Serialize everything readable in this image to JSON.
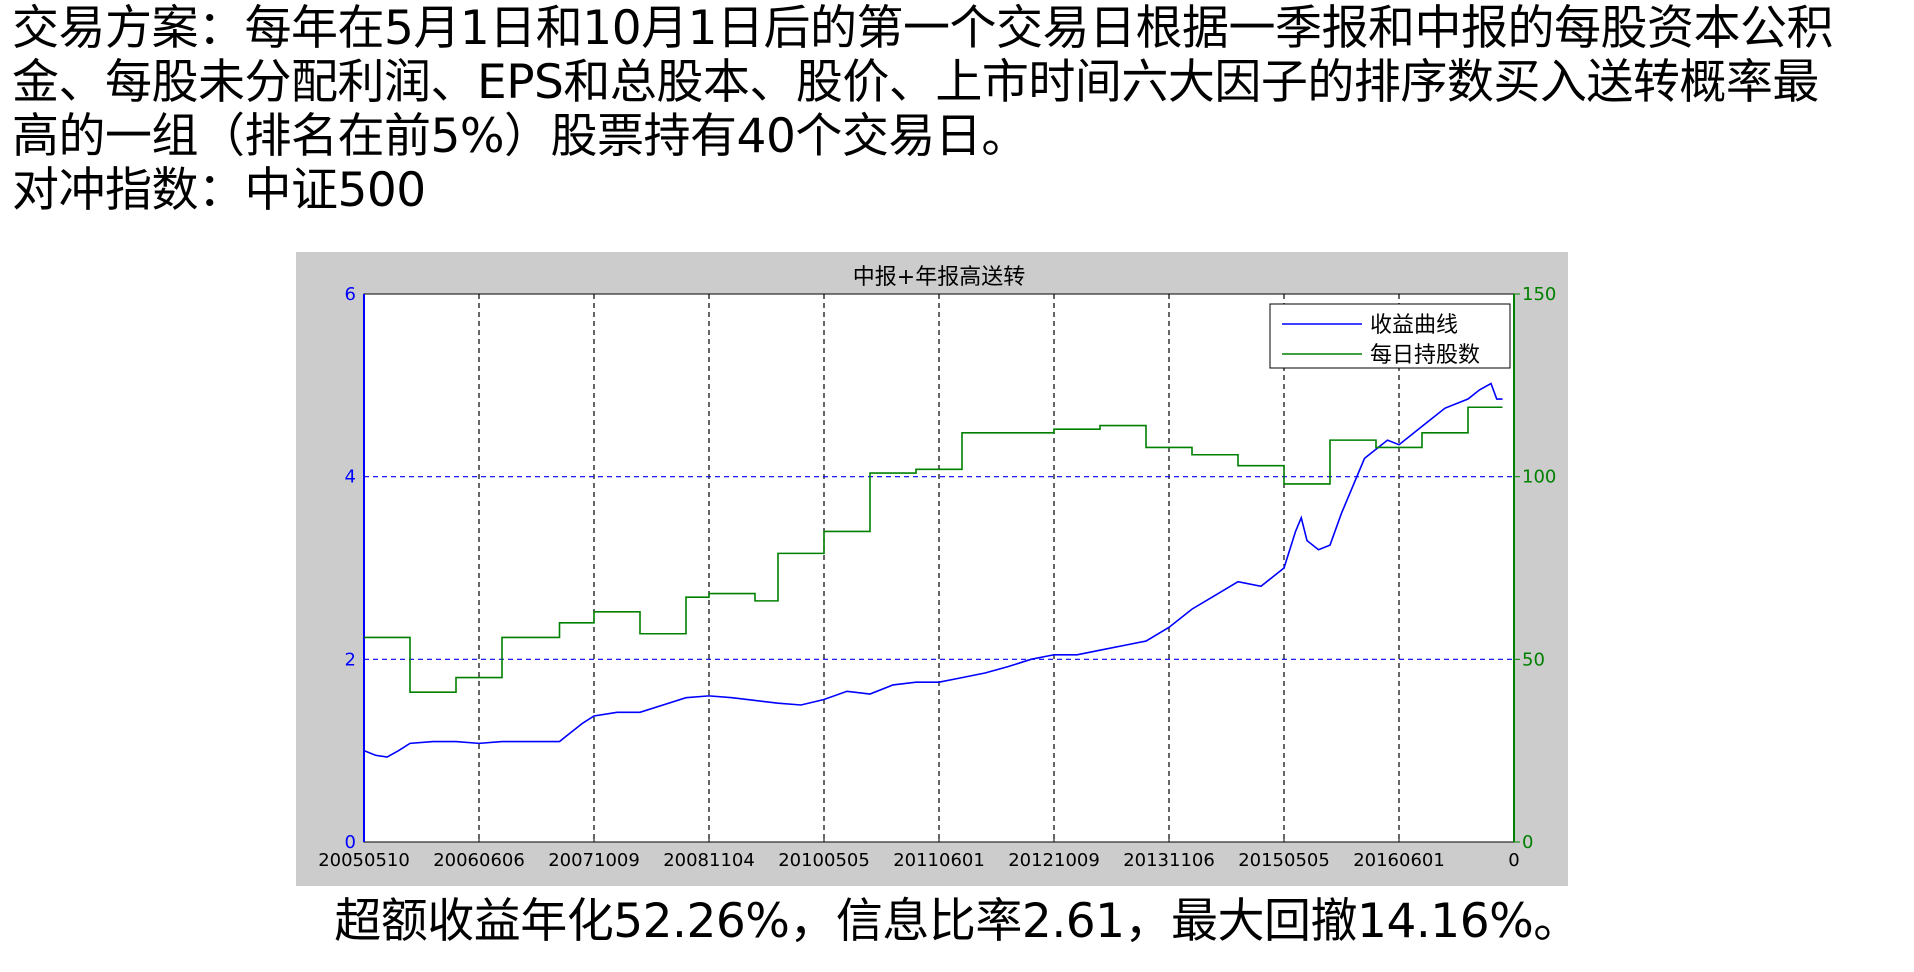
{
  "intro": {
    "line1": "交易方案：每年在5月1日和10月1日后的第一个交易日根据一季报和中报的每股资本公积",
    "line2": "金、每股未分配利润、EPS和总股本、股价、上市时间六大因子的排序数买入送转概率最",
    "line3": "高的一组（排名在前5%）股票持有40个交易日。",
    "line4": "对冲指数：中证500"
  },
  "summary": "超额收益年化52.26%，信息比率2.61，最大回撤14.16%。",
  "colors": {
    "left_axis": "#0000ff",
    "right_axis": "#008000",
    "grid": "#000000",
    "plot_bg": "#ffffff",
    "frame_bg": "#cccccc"
  },
  "chart_data": {
    "type": "line",
    "title": "中报+年报高送转",
    "x_tick_labels": [
      "20050510",
      "20060606",
      "20071009",
      "20081104",
      "20100505",
      "20110601",
      "20121009",
      "20131106",
      "20150505",
      "20160601",
      "0"
    ],
    "x_range": [
      0,
      10
    ],
    "ylim_left": [
      0,
      6
    ],
    "ylim_right": [
      0,
      150
    ],
    "y_left_ticks": [
      "0",
      "2",
      "4",
      "6"
    ],
    "y_right_ticks": [
      "0",
      "50",
      "100",
      "150"
    ],
    "legend": [
      "收益曲线",
      "每日持股数"
    ],
    "legend_position": "top-right",
    "grid": "dashed",
    "series": [
      {
        "name": "收益曲线",
        "axis": "left",
        "color": "#0000ff",
        "x": [
          0,
          0.1,
          0.2,
          0.3,
          0.4,
          0.6,
          0.8,
          1.0,
          1.2,
          1.4,
          1.6,
          1.7,
          1.8,
          1.9,
          2.0,
          2.2,
          2.4,
          2.6,
          2.8,
          3.0,
          3.2,
          3.4,
          3.6,
          3.8,
          4.0,
          4.2,
          4.4,
          4.6,
          4.8,
          5.0,
          5.2,
          5.4,
          5.6,
          5.8,
          6.0,
          6.2,
          6.4,
          6.6,
          6.8,
          7.0,
          7.2,
          7.4,
          7.6,
          7.8,
          8.0,
          8.1,
          8.15,
          8.2,
          8.3,
          8.4,
          8.5,
          8.6,
          8.7,
          8.8,
          8.9,
          9.0,
          9.2,
          9.4,
          9.6,
          9.7,
          9.8,
          9.85,
          9.9
        ],
        "values": [
          1.0,
          0.95,
          0.93,
          1.0,
          1.08,
          1.1,
          1.1,
          1.08,
          1.1,
          1.1,
          1.1,
          1.1,
          1.2,
          1.3,
          1.38,
          1.42,
          1.42,
          1.5,
          1.58,
          1.6,
          1.58,
          1.55,
          1.52,
          1.5,
          1.56,
          1.65,
          1.62,
          1.72,
          1.75,
          1.75,
          1.8,
          1.85,
          1.92,
          2.0,
          2.05,
          2.05,
          2.1,
          2.15,
          2.2,
          2.35,
          2.55,
          2.7,
          2.85,
          2.8,
          3.0,
          3.4,
          3.55,
          3.3,
          3.2,
          3.25,
          3.6,
          3.9,
          4.2,
          4.3,
          4.4,
          4.35,
          4.55,
          4.75,
          4.85,
          4.95,
          5.02,
          4.85,
          4.85
        ]
      },
      {
        "name": "每日持股数",
        "axis": "right",
        "color": "#008000",
        "step": true,
        "x": [
          0,
          0.4,
          0.8,
          1.2,
          1.7,
          2.0,
          2.4,
          2.8,
          3.0,
          3.4,
          3.6,
          4.0,
          4.4,
          4.8,
          5.2,
          5.6,
          6.0,
          6.4,
          6.8,
          7.2,
          7.6,
          8.0,
          8.4,
          8.8,
          9.2,
          9.6,
          9.9
        ],
        "values": [
          56,
          41,
          45,
          56,
          60,
          63,
          57,
          67,
          68,
          66,
          79,
          85,
          101,
          102,
          112,
          112,
          113,
          114,
          108,
          106,
          103,
          98,
          110,
          108,
          112,
          119,
          119
        ]
      }
    ]
  }
}
